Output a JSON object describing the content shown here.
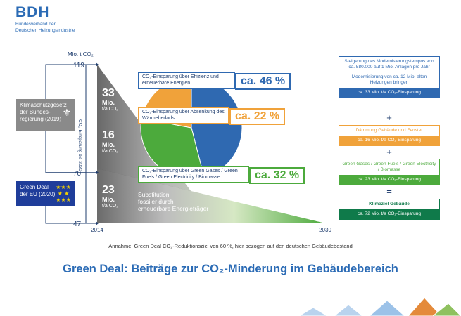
{
  "logo": {
    "mark": "BDH",
    "line1": "Bundesverband der",
    "line2": "Deutschen Heizungsindustrie"
  },
  "colors": {
    "blue": "#2f69b1",
    "navy": "#1f3d6e",
    "orange": "#f0a23a",
    "green": "#4caa3c",
    "grey": "#8a8a8a"
  },
  "axis": {
    "unit": "Mio. t CO₂",
    "vertical_label": "CO₂-Einsparung bis 2030"
  },
  "side": {
    "law": "Klimaschutzgesetz der Bundes-regierung (2019)",
    "eu": "Green Deal der EU (2020)"
  },
  "slice_labels": [
    {
      "text": "CO₂-Einsparung über Effizienz und erneuerbare Energien",
      "pct": "ca. 46 %"
    },
    {
      "text": "CO₂-Einsparung über Absenkung des Wärmebedarfs",
      "pct": "ca. 22 %"
    },
    {
      "text": "CO₂-Einsparung über Green Gases / Green Fuels / Green Electricity / Biomasse",
      "pct": "ca. 32 %"
    }
  ],
  "big_numbers": [
    {
      "n": "33",
      "u": "Mio.",
      "s": "t/a CO₂"
    },
    {
      "n": "16",
      "u": "Mio.",
      "s": "t/a CO₂"
    },
    {
      "n": "23",
      "u": "Mio.",
      "s": "t/a CO₂"
    }
  ],
  "substitution": {
    "l1": "Substitution",
    "l2": "fossiler durch",
    "l3": "erneuerbare Energieträger"
  },
  "right_col": {
    "b1_t1": "Steigerung des Modernisierungstempos von ca. 580.000 auf 1 Mio. Anlagen pro Jahr",
    "b1_t2": "Modernisierung von ca. 12 Mio. alten Heizungen bringen",
    "b1_bar": "ca. 33 Mio. t/a CO₂-Einsparung",
    "b2_t": "Dämmung Gebäude und Fenster",
    "b2_bar": "ca. 16 Mio. t/a CO₂-Einsparung",
    "b3_t": "Green Gases / Green Fuels / Green Electricity / Biomasse",
    "b3_bar": "ca. 23 Mio. t/a CO₂-Einsparung",
    "b4_t": "Klimaziel Gebäude",
    "b4_bar": "ca. 72 Mio. t/a CO₂-Einsparung",
    "plus": "+",
    "equals": "="
  },
  "note": "Annahme: Green Deal CO₂-Reduktionsziel von 60 %, hier bezogen auf den deutschen Gebäudebestand",
  "title": "Green Deal: Beiträge zur CO₂-Minderung im Gebäudebereich",
  "chart_data": {
    "type": "pie",
    "categories": [
      "CO₂-Einsparung über Effizienz und erneuerbare Energien",
      "CO₂-Einsparung über Absenkung des Wärmebedarfs",
      "CO₂-Einsparung über Green Gases / Green Fuels / Green Electricity / Biomasse"
    ],
    "values": [
      46,
      22,
      32
    ],
    "colors": [
      "#2f69b1",
      "#f0a23a",
      "#4caa3c"
    ],
    "y_ticks": [
      {
        "value": 119,
        "label": "119"
      },
      {
        "value": 70,
        "label": "70"
      },
      {
        "value": 47,
        "label": "47"
      }
    ],
    "x_ticks": [
      {
        "value": 2014,
        "label": "2014"
      },
      {
        "value": 2030,
        "label": "2030"
      }
    ],
    "ylim": [
      47,
      119
    ],
    "xlim": [
      2014,
      2030
    ]
  }
}
